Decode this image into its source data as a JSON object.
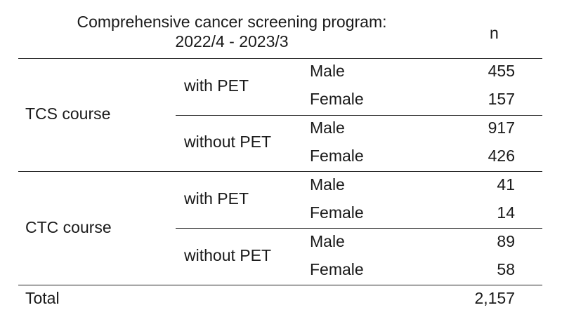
{
  "header": {
    "title_line1": "Comprehensive cancer screening program:",
    "title_line2": "2022/4 - 2023/3",
    "count_label": "n"
  },
  "groups": [
    {
      "course": "TCS course",
      "subgroups": [
        {
          "pet": "with PET",
          "rows": [
            {
              "sex": "Male",
              "n": "455"
            },
            {
              "sex": "Female",
              "n": "157"
            }
          ]
        },
        {
          "pet": "without PET",
          "rows": [
            {
              "sex": "Male",
              "n": "917"
            },
            {
              "sex": "Female",
              "n": "426"
            }
          ]
        }
      ]
    },
    {
      "course": "CTC course",
      "subgroups": [
        {
          "pet": "with PET",
          "rows": [
            {
              "sex": "Male",
              "n": "41"
            },
            {
              "sex": "Female",
              "n": "14"
            }
          ]
        },
        {
          "pet": "without PET",
          "rows": [
            {
              "sex": "Male",
              "n": "89"
            },
            {
              "sex": "Female",
              "n": "58"
            }
          ]
        }
      ]
    }
  ],
  "total": {
    "label": "Total",
    "n": "2,157"
  }
}
